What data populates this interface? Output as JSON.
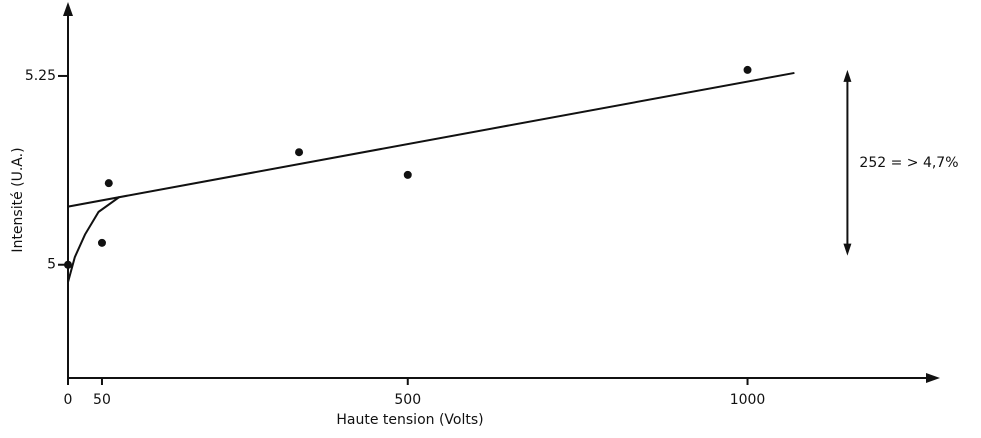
{
  "chart_data": {
    "type": "scatter",
    "x_label": "Haute tension (Volts)",
    "y_label": "Intensité (U.A.)",
    "x": [
      0,
      50,
      60,
      340,
      500,
      1000
    ],
    "values": [
      5.0,
      5.029,
      5.108,
      5.149,
      5.119,
      5.258
    ],
    "color": "#111111",
    "fit_line": {
      "x": [
        0,
        1069
      ],
      "values": [
        5.077,
        5.254
      ]
    },
    "fit_curve": {
      "x": [
        0,
        10,
        25,
        45,
        76
      ],
      "values": [
        4.977,
        5.01,
        5.04,
        5.07,
        5.09
      ]
    },
    "annotation": {
      "text": "252 = > 4,7%",
      "x": 1147,
      "y_range": [
        5.012,
        5.258
      ]
    },
    "xlim": [
      0,
      1270
    ],
    "ylim": [
      4.85,
      5.34
    ],
    "xticks": [
      0,
      50,
      500,
      1000
    ],
    "yticks": [
      5,
      5.25
    ],
    "grid": false
  }
}
